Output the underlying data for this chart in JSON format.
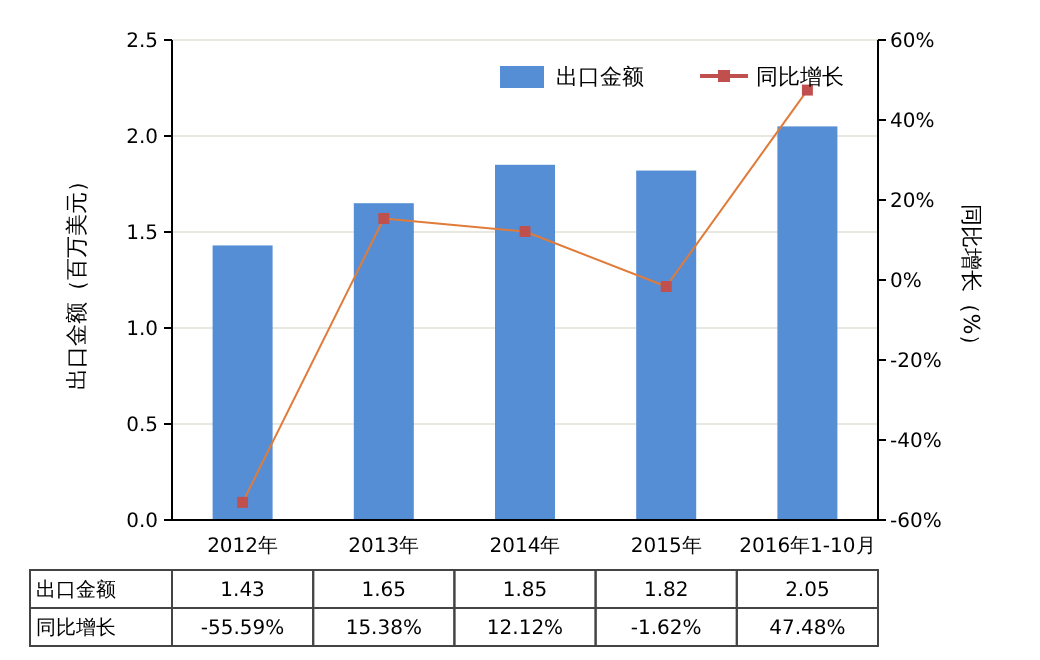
{
  "chart_data": {
    "type": "bar",
    "ylabel": "出口金额（百万美元）",
    "y2label": "同比增长（%）",
    "categories": [
      "2012年",
      "2013年",
      "2014年",
      "2015年",
      "2016年1-10月"
    ],
    "series": [
      {
        "name": "出口金额",
        "color": "#558ed5",
        "values": [
          1.43,
          1.65,
          1.85,
          1.82,
          2.05
        ],
        "value_labels": [
          "1.43",
          "1.65",
          "1.85",
          "1.82",
          "2.05"
        ]
      },
      {
        "name": "同比增长",
        "type": "line",
        "axis": "y2",
        "color": "#c0504d",
        "values": [
          -55.59,
          15.38,
          12.12,
          -1.62,
          47.48
        ],
        "value_labels": [
          "-55.59%",
          "15.38%",
          "12.12%",
          "-1.62%",
          "47.48%"
        ],
        "marker": "square"
      }
    ],
    "ylim": [
      0,
      2.5
    ],
    "yticks": [
      {
        "value": 0,
        "label": "0.0"
      },
      {
        "value": 0.5,
        "label": "0.5"
      },
      {
        "value": 1,
        "label": "1.0"
      },
      {
        "value": 1.5,
        "label": "1.5"
      },
      {
        "value": 2,
        "label": "2.0"
      },
      {
        "value": 2.5,
        "label": "2.5"
      }
    ],
    "y2lim": [
      -60,
      60
    ],
    "y2ticks": [
      {
        "value": -60,
        "label": "-60%"
      },
      {
        "value": -40,
        "label": "-40%"
      },
      {
        "value": -20,
        "label": "-20%"
      },
      {
        "value": 0,
        "label": "0%"
      },
      {
        "value": 20,
        "label": "20%"
      },
      {
        "value": 40,
        "label": "40%"
      },
      {
        "value": 60,
        "label": "60%"
      }
    ],
    "grid": "y",
    "legend": "top right"
  }
}
